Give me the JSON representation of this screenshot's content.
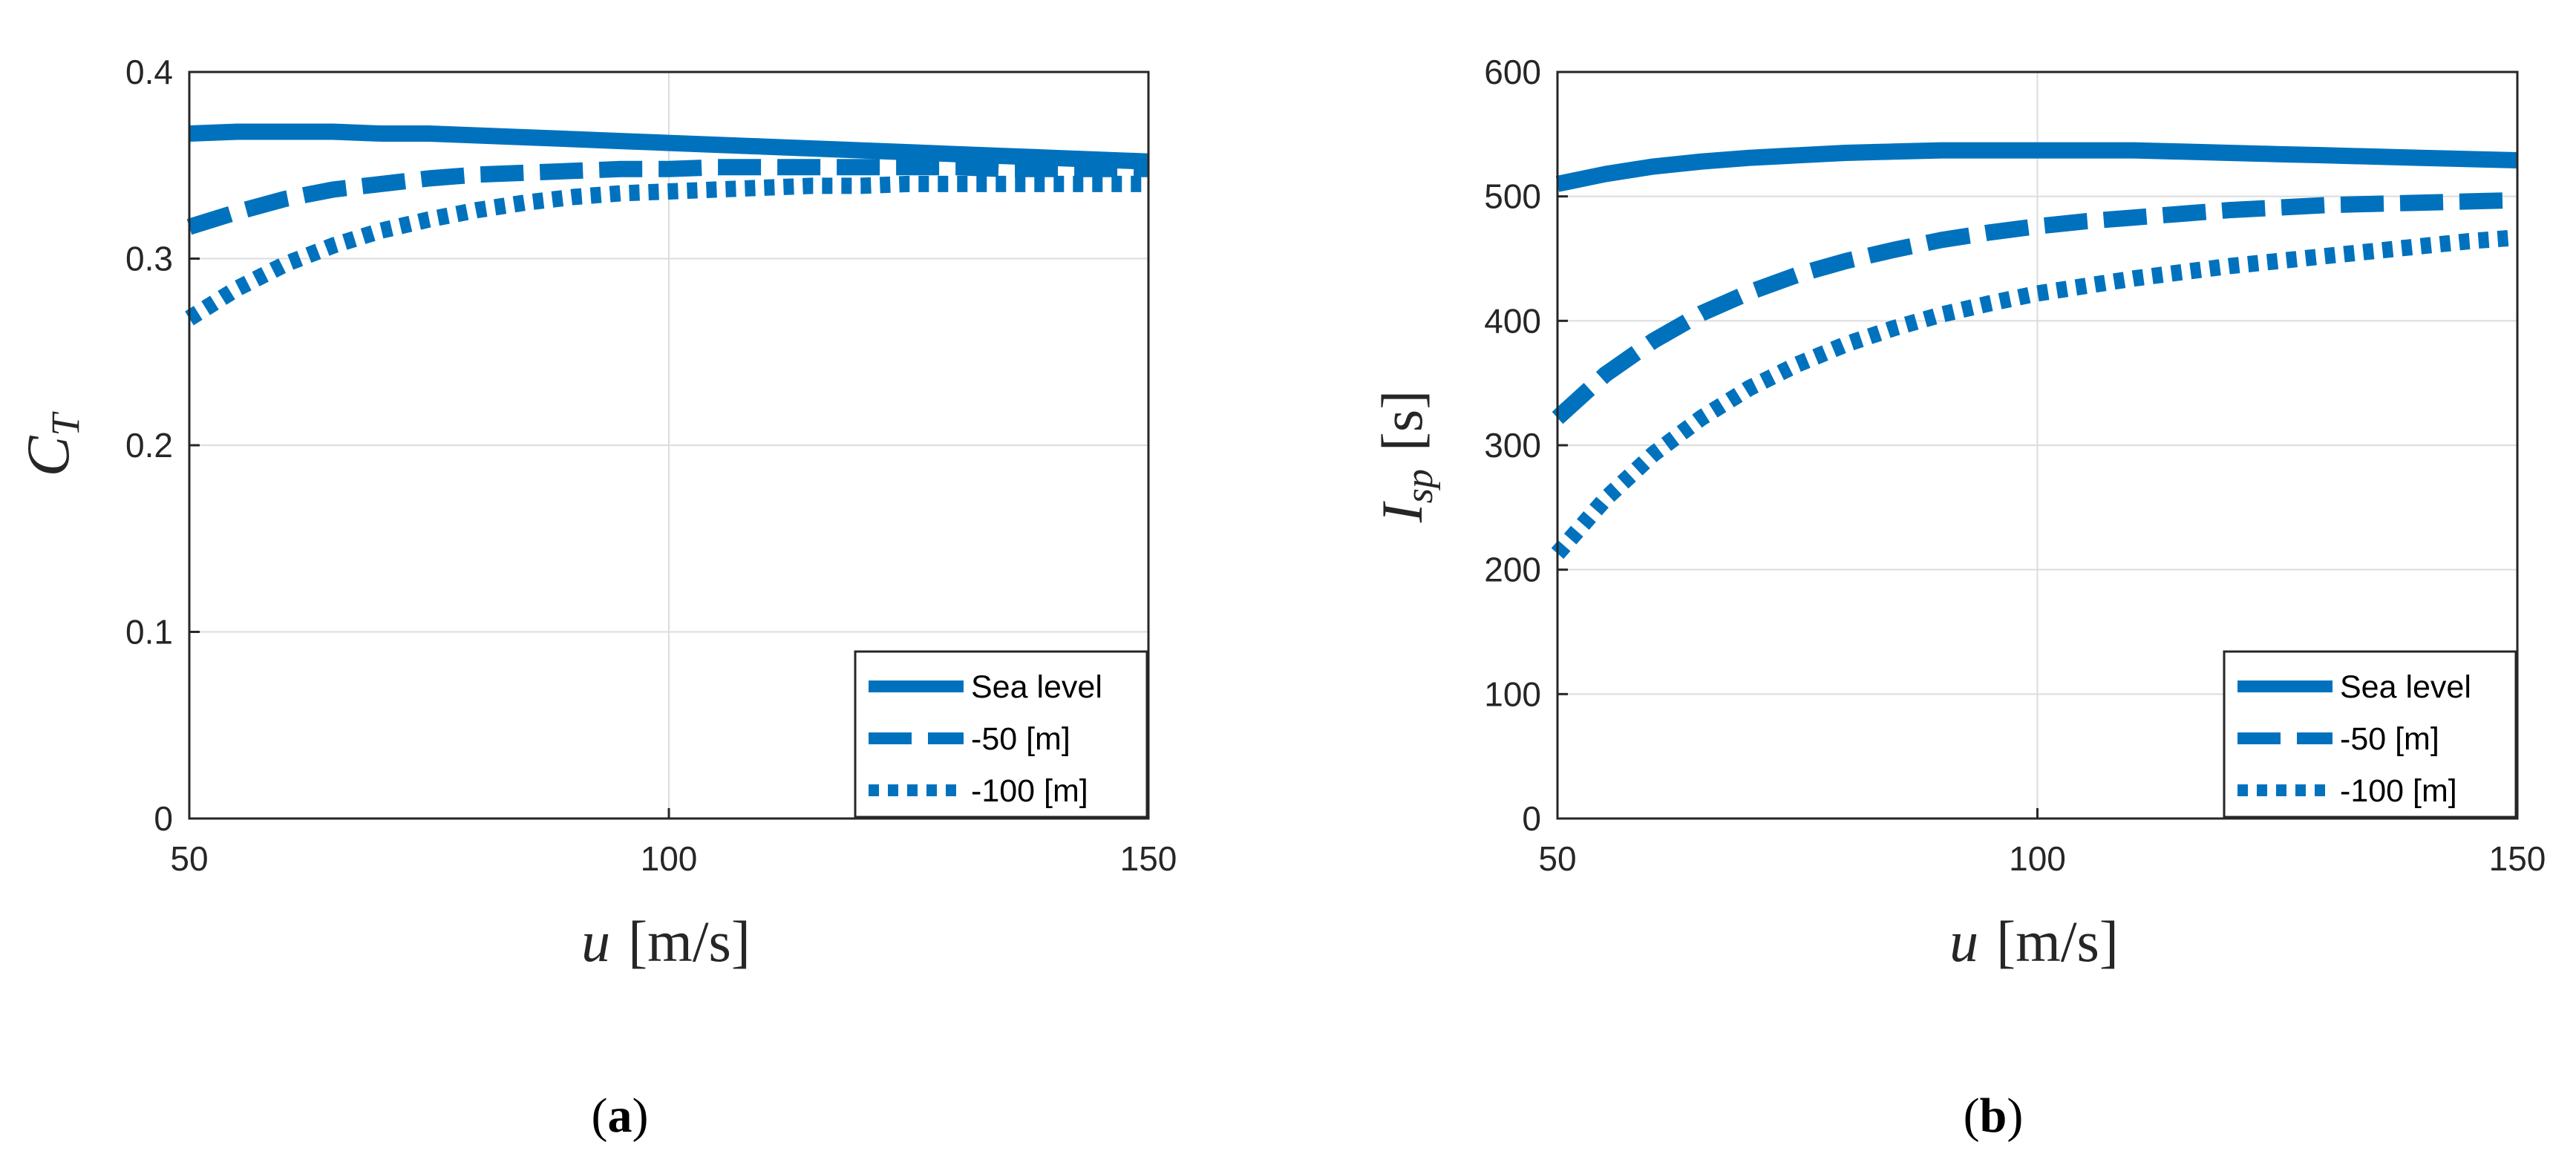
{
  "chart_data": [
    {
      "type": "line",
      "panel": "a",
      "caption_letter": "a",
      "x": [
        50,
        55,
        60,
        65,
        70,
        75,
        80,
        85,
        90,
        95,
        100,
        105,
        110,
        115,
        120,
        125,
        130,
        135,
        140,
        145,
        150
      ],
      "series": [
        {
          "name": "Sea level",
          "style": "solid",
          "values": [
            0.367,
            0.368,
            0.368,
            0.368,
            0.367,
            0.367,
            0.366,
            0.365,
            0.364,
            0.363,
            0.362,
            0.361,
            0.36,
            0.359,
            0.358,
            0.357,
            0.356,
            0.355,
            0.354,
            0.353,
            0.352
          ]
        },
        {
          "name": "-50 [m]",
          "style": "dashed",
          "values": [
            0.317,
            0.325,
            0.332,
            0.337,
            0.34,
            0.343,
            0.345,
            0.346,
            0.347,
            0.348,
            0.348,
            0.349,
            0.349,
            0.349,
            0.349,
            0.349,
            0.349,
            0.348,
            0.348,
            0.348,
            0.348
          ]
        },
        {
          "name": "-100 [m]",
          "style": "dotted",
          "values": [
            0.268,
            0.284,
            0.297,
            0.307,
            0.315,
            0.321,
            0.326,
            0.33,
            0.333,
            0.335,
            0.336,
            0.337,
            0.338,
            0.339,
            0.339,
            0.34,
            0.34,
            0.34,
            0.34,
            0.34,
            0.34
          ]
        }
      ],
      "xlim": [
        50,
        150
      ],
      "ylim": [
        0,
        0.4
      ],
      "xticks": [
        "50",
        "100",
        "150"
      ],
      "yticks": [
        "0",
        "0.1",
        "0.2",
        "0.3",
        "0.4"
      ],
      "xlabel": {
        "var": "u",
        "unit": "[m/s]"
      },
      "ylabel": {
        "var": "C",
        "sub": "T"
      },
      "grid": true,
      "legend_position": "bottom-right"
    },
    {
      "type": "line",
      "panel": "b",
      "caption_letter": "b",
      "x": [
        50,
        55,
        60,
        65,
        70,
        75,
        80,
        85,
        90,
        95,
        100,
        105,
        110,
        115,
        120,
        125,
        130,
        135,
        140,
        145,
        150
      ],
      "series": [
        {
          "name": "Sea level",
          "style": "solid",
          "values": [
            510,
            518,
            524,
            528,
            531,
            533,
            535,
            536,
            537,
            537,
            537,
            537,
            537,
            536,
            535,
            534,
            533,
            532,
            531,
            530,
            529
          ]
        },
        {
          "name": "-50 [m]",
          "style": "dashed",
          "values": [
            322,
            357,
            384,
            406,
            423,
            437,
            448,
            457,
            465,
            471,
            476,
            480,
            483,
            486,
            489,
            491,
            493,
            494,
            495,
            496,
            497
          ]
        },
        {
          "name": "-100 [m]",
          "style": "dotted",
          "values": [
            213,
            257,
            293,
            322,
            346,
            365,
            381,
            394,
            405,
            414,
            422,
            428,
            434,
            439,
            444,
            448,
            452,
            456,
            460,
            464,
            467
          ]
        }
      ],
      "xlim": [
        50,
        150
      ],
      "ylim": [
        0,
        600
      ],
      "xticks": [
        "50",
        "100",
        "150"
      ],
      "yticks": [
        "0",
        "100",
        "200",
        "300",
        "400",
        "500",
        "600"
      ],
      "xlabel": {
        "var": "u",
        "unit": "[m/s]"
      },
      "ylabel": {
        "var": "I",
        "sub": "sp",
        "unit": "[s]"
      },
      "grid": true,
      "legend_position": "bottom-right"
    }
  ],
  "colors": {
    "line": "#0072BD",
    "grid": "#dcdcdc",
    "axis": "#262626"
  }
}
